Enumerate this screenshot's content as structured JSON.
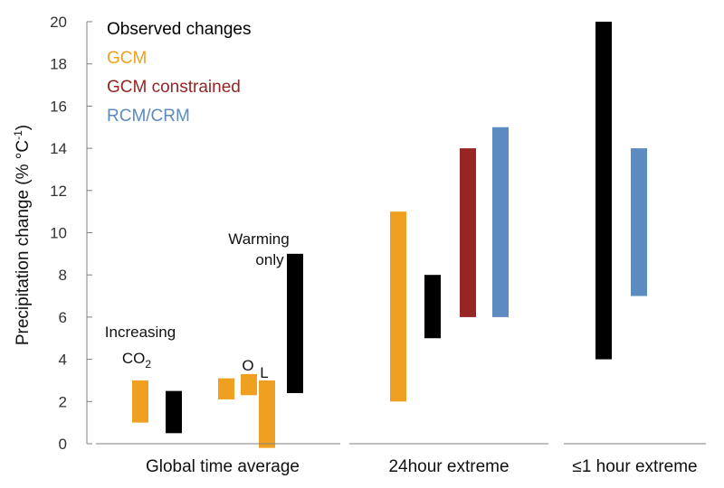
{
  "chart_data": {
    "type": "bar",
    "ylabel": "Precipitation change (% °C",
    "ylabel_sup": "-1",
    "ylabel_close": ")",
    "ylim": [
      0,
      20
    ],
    "yticks": [
      "0",
      "2",
      "4",
      "6",
      "8",
      "10",
      "12",
      "14",
      "16",
      "18",
      "20"
    ],
    "groups": [
      "Global time average",
      "24hour extreme",
      "≤1 hour  extreme"
    ],
    "legend": [
      {
        "label": "Observed changes",
        "color": "#000000"
      },
      {
        "label": "GCM",
        "color": "#F0A020"
      },
      {
        "label": "GCM constrained",
        "color": "#962524"
      },
      {
        "label": "RCM/CRM",
        "color": "#5B8BC0"
      }
    ],
    "annotations": {
      "increasing": "Increasing",
      "co2": "CO",
      "co2_sub": "2",
      "warming1": "Warming",
      "warming2": "only",
      "o": "O",
      "l": "L"
    },
    "bars": [
      {
        "group": "Global time average",
        "series": "GCM",
        "low": 1.0,
        "high": 3.0
      },
      {
        "group": "Global time average",
        "series": "Observed changes",
        "low": 0.5,
        "high": 2.5
      },
      {
        "group": "Global time average",
        "series": "GCM",
        "low": 2.1,
        "high": 3.1
      },
      {
        "group": "Global time average",
        "series": "GCM",
        "low": 2.3,
        "high": 3.3
      },
      {
        "group": "Global time average",
        "series": "GCM",
        "low": -0.2,
        "high": 3.0
      },
      {
        "group": "Global time average",
        "series": "Observed changes",
        "low": 2.4,
        "high": 9.0
      },
      {
        "group": "24hour extreme",
        "series": "GCM",
        "low": 2.0,
        "high": 11.0
      },
      {
        "group": "24hour extreme",
        "series": "Observed changes",
        "low": 5.0,
        "high": 8.0
      },
      {
        "group": "24hour extreme",
        "series": "GCM constrained",
        "low": 6.0,
        "high": 14.0
      },
      {
        "group": "24hour extreme",
        "series": "RCM/CRM",
        "low": 6.0,
        "high": 15.0
      },
      {
        "group": "≤1 hour  extreme",
        "series": "Observed changes",
        "low": 4.0,
        "high": 20.0
      },
      {
        "group": "≤1 hour  extreme",
        "series": "RCM/CRM",
        "low": 7.0,
        "high": 14.0
      }
    ],
    "grid": false,
    "legend_position": "top-left"
  }
}
